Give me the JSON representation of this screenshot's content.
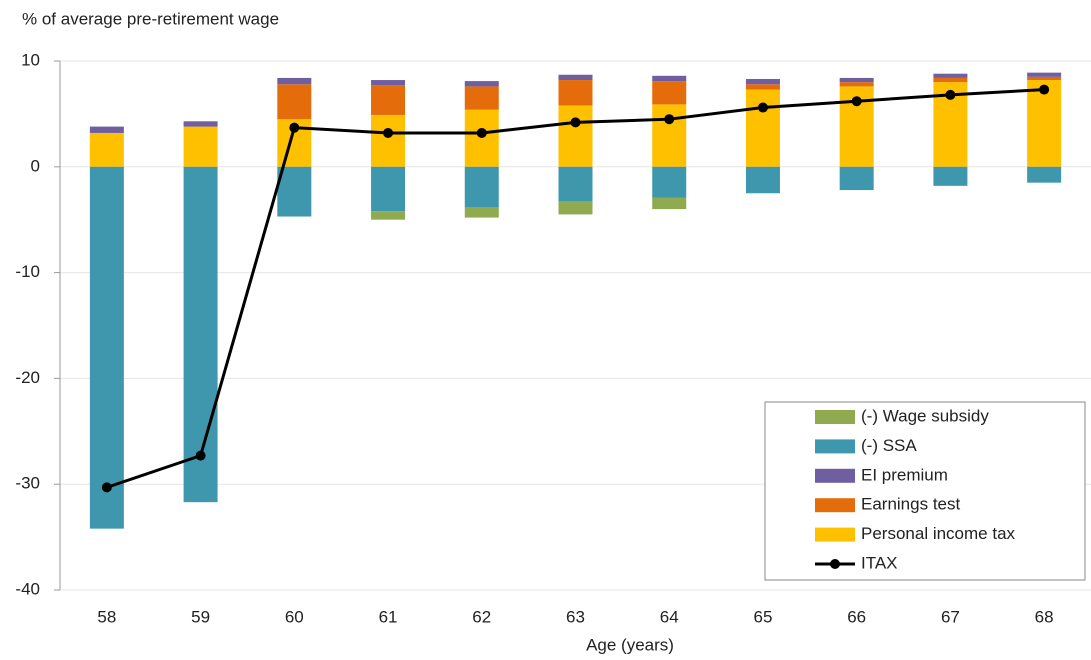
{
  "chart_data": {
    "type": "bar",
    "stacked": true,
    "y_label": "% of average pre-retirement wage",
    "x_label": "Age (years)",
    "categories": [
      "58",
      "59",
      "60",
      "61",
      "62",
      "63",
      "64",
      "65",
      "66",
      "67",
      "68"
    ],
    "ylim": [
      -40,
      10
    ],
    "yticks": [
      -40,
      -30,
      -20,
      -10,
      0,
      10
    ],
    "grid": true,
    "legend": "lower right",
    "series": [
      {
        "name": "(-) Wage subsidy",
        "color": "#8faa4f",
        "values": [
          0,
          0,
          0,
          -0.8,
          -1.0,
          -1.2,
          -1.1,
          0,
          0,
          0,
          0
        ]
      },
      {
        "name": "(-) SSA",
        "color": "#3f97ae",
        "values": [
          -34.2,
          -31.7,
          -4.7,
          -4.2,
          -3.8,
          -3.3,
          -2.9,
          -2.5,
          -2.2,
          -1.8,
          -1.5
        ]
      },
      {
        "name": "EI premium",
        "color": "#6f5ea0",
        "values": [
          0.6,
          0.5,
          0.6,
          0.5,
          0.5,
          0.5,
          0.5,
          0.5,
          0.4,
          0.4,
          0.4
        ]
      },
      {
        "name": "Earnings test",
        "color": "#e46c0a",
        "values": [
          0,
          0,
          3.3,
          2.8,
          2.2,
          2.4,
          2.2,
          0.5,
          0.4,
          0.4,
          0.3
        ]
      },
      {
        "name": "Personal income tax",
        "color": "#ffc000",
        "values": [
          3.2,
          3.8,
          4.5,
          4.9,
          5.4,
          5.8,
          5.9,
          7.3,
          7.6,
          8.0,
          8.2
        ]
      },
      {
        "name": "ITAX",
        "type": "line",
        "color": "#000000",
        "values": [
          -30.3,
          -27.3,
          3.7,
          3.2,
          3.2,
          4.2,
          4.5,
          5.6,
          6.2,
          6.8,
          7.3
        ]
      }
    ]
  }
}
